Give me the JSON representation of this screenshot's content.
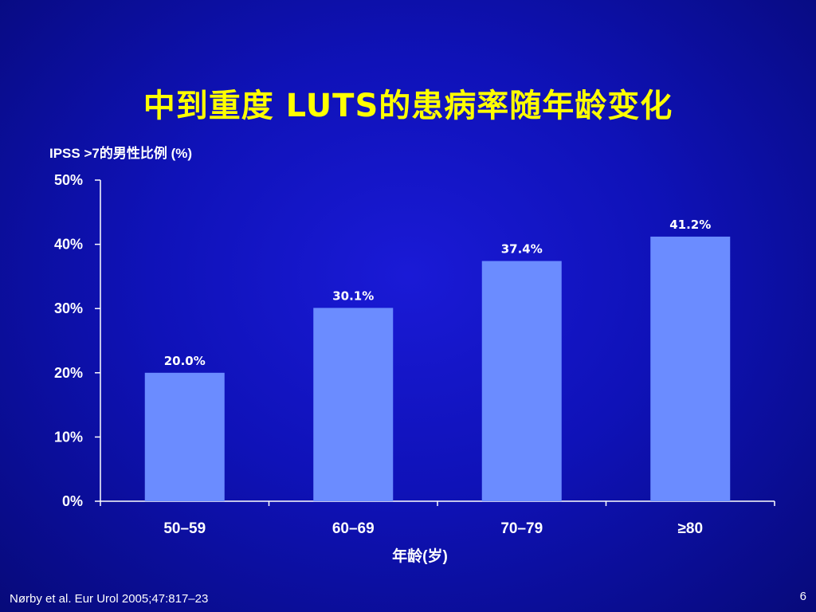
{
  "slide": {
    "title": "中到重度 LUTS的患病率随年龄变化",
    "footnote": "Nørby et al. Eur Urol 2005;47:817–23",
    "page_number": "6"
  },
  "chart_data": {
    "type": "bar",
    "ylabel": "IPSS >7的男性比例 (%)",
    "xlabel": "年龄(岁)",
    "categories": [
      "50–59",
      "60–69",
      "70–79",
      "≥80"
    ],
    "values": [
      20.0,
      30.1,
      37.4,
      41.2
    ],
    "value_labels": [
      "20.0%",
      "30.1%",
      "37.4%",
      "41.2%"
    ],
    "ylim": [
      0,
      50
    ],
    "yticks": [
      0,
      10,
      20,
      30,
      40,
      50
    ],
    "ytick_labels": [
      "0%",
      "10%",
      "20%",
      "30%",
      "40%",
      "50%"
    ],
    "grid": false,
    "colors": {
      "bar": "#6b8cff",
      "axis": "#ffffff",
      "title": "#ffff00",
      "background": "#1212c8"
    }
  }
}
